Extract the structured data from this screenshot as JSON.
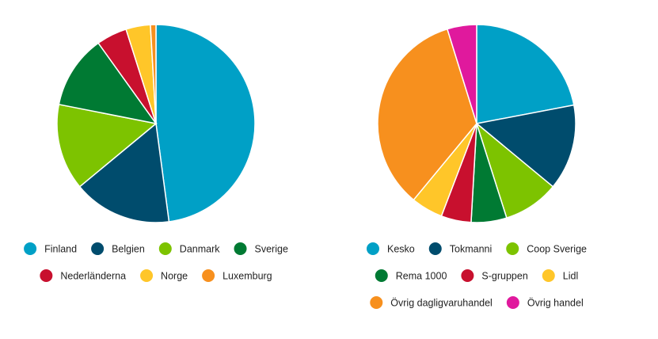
{
  "chart_data": [
    {
      "type": "pie",
      "categories": [
        "Finland",
        "Belgien",
        "Danmark",
        "Sverige",
        "Nederländerna",
        "Norge",
        "Luxemburg"
      ],
      "values": [
        47.9,
        16.1,
        14.1,
        12.0,
        5.0,
        4.0,
        0.9
      ],
      "colors": [
        "#00a0c6",
        "#004c6d",
        "#7dc300",
        "#007a33",
        "#c8102e",
        "#ffc629",
        "#f7901e"
      ]
    },
    {
      "type": "pie",
      "categories": [
        "Kesko",
        "Tokmanni",
        "Coop Sverige",
        "Rema 1000",
        "S-gruppen",
        "Lidl",
        "Övrig dagligvaruhandel",
        "Övrig handel"
      ],
      "values": [
        22.0,
        14.0,
        9.1,
        5.8,
        4.9,
        5.2,
        34.2,
        4.8
      ],
      "colors": [
        "#00a0c6",
        "#004c6d",
        "#7dc300",
        "#007a33",
        "#c8102e",
        "#ffc629",
        "#f7901e",
        "#e0199d"
      ]
    }
  ]
}
